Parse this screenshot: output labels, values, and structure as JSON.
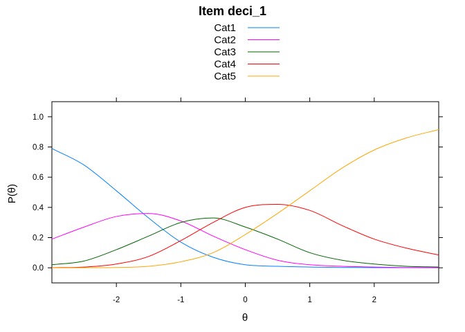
{
  "chart_data": {
    "type": "line",
    "title": "Item deci_1",
    "xlabel": "θ",
    "ylabel": "P(θ)",
    "xlim": [
      -3,
      3
    ],
    "ylim": [
      -0.1,
      1.1
    ],
    "x_ticks": [
      -2,
      -1,
      0,
      1,
      2
    ],
    "x_tick_labels": [
      "-2",
      "-1",
      "0",
      "1",
      "2"
    ],
    "y_ticks": [
      0.0,
      0.2,
      0.4,
      0.6,
      0.8,
      1.0
    ],
    "y_tick_labels": [
      "0.0",
      "0.2",
      "0.4",
      "0.6",
      "0.8",
      "1.0"
    ],
    "grid": false,
    "legend_position": "top-center",
    "x": [
      -3,
      -2.5,
      -2,
      -1.5,
      -1,
      -0.5,
      0,
      0.5,
      1,
      1.5,
      2,
      2.5,
      3
    ],
    "series": [
      {
        "name": "Cat1",
        "color": "#0080FF",
        "values": [
          0.79,
          0.68,
          0.51,
          0.33,
          0.17,
          0.07,
          0.02,
          0.01,
          0.005,
          0.002,
          0.001,
          0.0005,
          0.0002
        ]
      },
      {
        "name": "Cat2",
        "color": "#FF00FF",
        "values": [
          0.19,
          0.27,
          0.34,
          0.36,
          0.31,
          0.21,
          0.12,
          0.05,
          0.02,
          0.01,
          0.005,
          0.002,
          0.001
        ]
      },
      {
        "name": "Cat3",
        "color": "#006400",
        "values": [
          0.02,
          0.045,
          0.12,
          0.21,
          0.3,
          0.33,
          0.27,
          0.19,
          0.1,
          0.05,
          0.025,
          0.01,
          0.005
        ]
      },
      {
        "name": "Cat4",
        "color": "#FF0000",
        "values": [
          0.001,
          0.005,
          0.025,
          0.075,
          0.18,
          0.3,
          0.4,
          0.42,
          0.38,
          0.28,
          0.19,
          0.13,
          0.085
        ]
      },
      {
        "name": "Cat5",
        "color": "#FFA500",
        "values": [
          0.0,
          0.0005,
          0.002,
          0.01,
          0.04,
          0.1,
          0.22,
          0.36,
          0.51,
          0.66,
          0.78,
          0.86,
          0.915
        ]
      }
    ]
  }
}
